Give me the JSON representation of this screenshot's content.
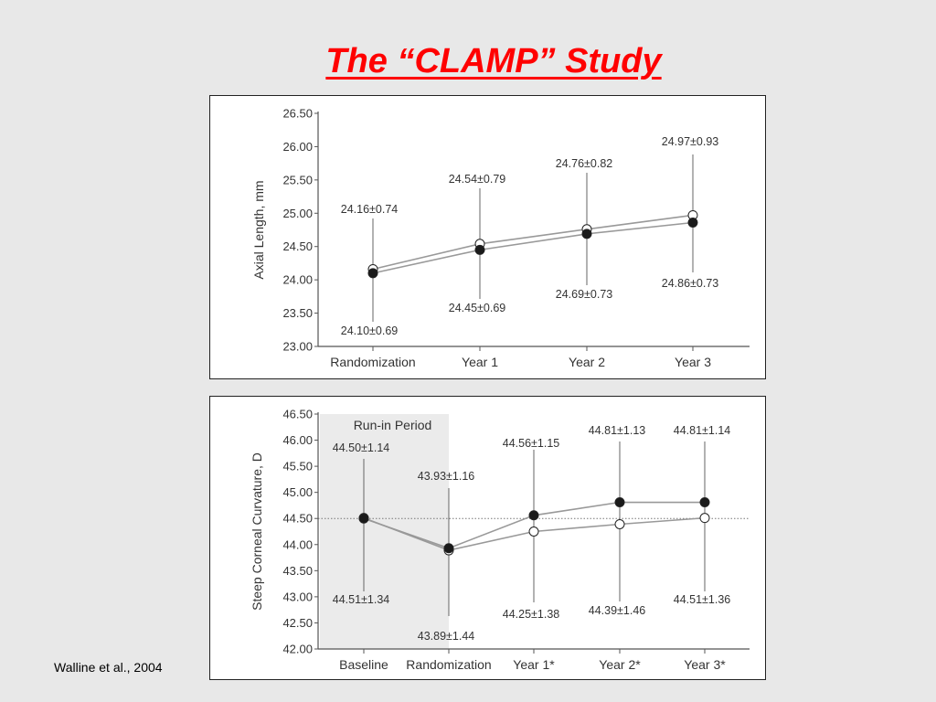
{
  "slide": {
    "title": "The “CLAMP” Study",
    "citation": "Walline et al., 2004"
  },
  "colors": {
    "title": "#ff0000",
    "slide_background": "#e8e8e8",
    "run_in_shading": "#ebebeb",
    "series_line": "#999999",
    "filled_marker": "#1a1a1a",
    "open_marker": "#ffffff"
  },
  "chart_data": [
    {
      "type": "line",
      "ylabel": "Axial Length, mm",
      "ylim": [
        23.0,
        26.5
      ],
      "yticks": [
        "23.00",
        "23.50",
        "24.00",
        "24.50",
        "25.00",
        "25.50",
        "26.00",
        "26.50"
      ],
      "categories": [
        "Randomization",
        "Year 1",
        "Year 2",
        "Year 3"
      ],
      "series": [
        {
          "marker": "open",
          "values": [
            24.16,
            24.54,
            24.76,
            24.97
          ]
        },
        {
          "marker": "filled",
          "values": [
            24.1,
            24.45,
            24.69,
            24.86
          ]
        }
      ],
      "annotations_upper": [
        "24.16±0.74",
        "24.54±0.79",
        "24.76±0.82",
        "24.97±0.93"
      ],
      "annotations_lower": [
        "24.10±0.69",
        "24.45±0.69",
        "24.69±0.73",
        "24.86±0.73"
      ],
      "grid": false
    },
    {
      "type": "line",
      "ylabel": "Steep Corneal Curvature, D",
      "ylim": [
        42.0,
        46.5
      ],
      "yticks": [
        "42.00",
        "42.50",
        "43.00",
        "43.50",
        "44.00",
        "44.50",
        "45.00",
        "45.50",
        "46.00",
        "46.50"
      ],
      "categories": [
        "Baseline",
        "Randomization",
        "Year 1*",
        "Year 2*",
        "Year 3*"
      ],
      "shaded_region": {
        "label": "Run-in Period",
        "from": "Baseline",
        "to": "Randomization"
      },
      "reference_line": 44.5,
      "series": [
        {
          "marker": "filled",
          "values": [
            44.5,
            43.93,
            44.56,
            44.81,
            44.81
          ]
        },
        {
          "marker": "open",
          "values": [
            44.51,
            43.89,
            44.25,
            44.39,
            44.51
          ]
        }
      ],
      "annotations_upper": [
        "44.50±1.14",
        "43.93±1.16",
        "44.56±1.15",
        "44.81±1.13",
        "44.81±1.14"
      ],
      "annotations_lower": [
        "44.51±1.34",
        "43.89±1.44",
        "44.25±1.38",
        "44.39±1.46",
        "44.51±1.36"
      ],
      "grid": false
    }
  ]
}
